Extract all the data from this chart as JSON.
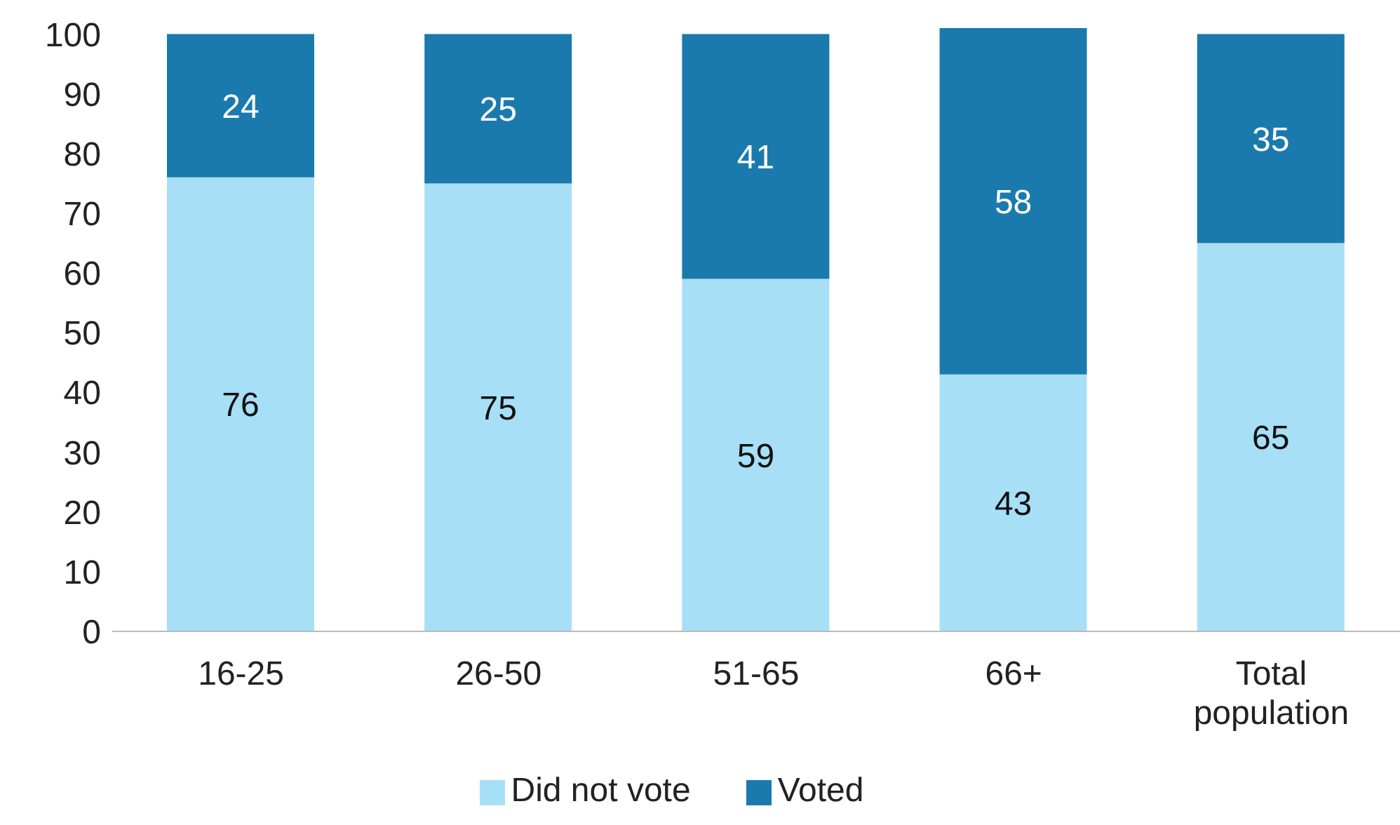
{
  "chart_data": {
    "type": "bar",
    "stacked": true,
    "categories": [
      "16-25",
      "26-50",
      "51-65",
      "66+",
      "Total population"
    ],
    "series": [
      {
        "name": "Did not vote",
        "color": "#a7dff7",
        "values": [
          76,
          75,
          59,
          43,
          65
        ]
      },
      {
        "name": "Voted",
        "color": "#1a7aad",
        "values": [
          24,
          25,
          41,
          58,
          35
        ]
      }
    ],
    "ylim": [
      0,
      101
    ],
    "yticks": [
      0,
      10,
      20,
      30,
      40,
      50,
      60,
      70,
      80,
      90,
      100
    ],
    "grid": false,
    "legend": "bottom",
    "data_labels": true
  }
}
